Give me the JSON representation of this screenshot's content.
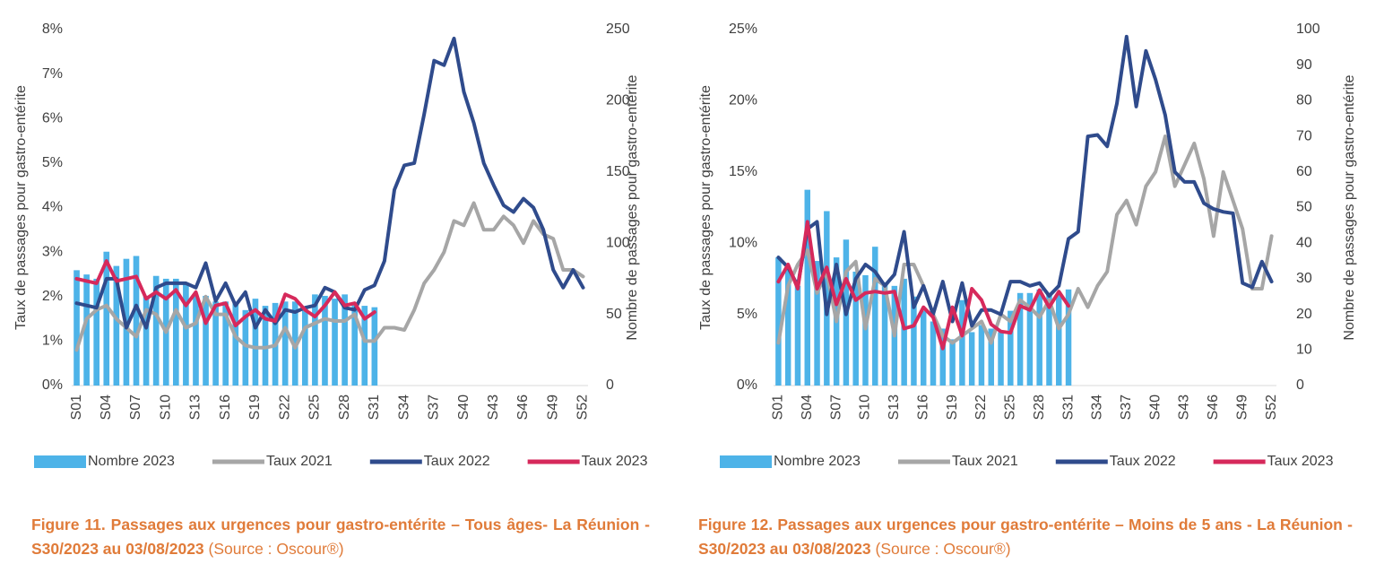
{
  "chart_data": [
    {
      "type": "bar-line",
      "caption": "Figure 11. Passages aux urgences pour gastro-entérite – Tous âges- La Réunion - S30/2023 au 03/08/2023",
      "source": "(Source : Oscour®)",
      "ylabel": "Taux de passages pour gastro-entérite",
      "y2label": "Nombre de passages pour gastro-entérite",
      "categories": [
        "S01",
        null,
        null,
        "S04",
        null,
        null,
        "S07",
        null,
        null,
        "S10",
        null,
        null,
        "S13",
        null,
        null,
        "S16",
        null,
        null,
        "S19",
        null,
        null,
        "S22",
        null,
        null,
        "S25",
        null,
        null,
        "S28",
        null,
        null,
        "S31",
        null,
        null,
        "S34",
        null,
        null,
        "S37",
        null,
        null,
        "S40",
        null,
        null,
        "S43",
        null,
        null,
        "S46",
        null,
        null,
        "S49",
        null,
        null,
        "S52"
      ],
      "ylim": [
        0,
        8
      ],
      "yticks": [
        {
          "value": 0,
          "label": "0%"
        },
        {
          "value": 1,
          "label": "1%"
        },
        {
          "value": 2,
          "label": "2%"
        },
        {
          "value": 3,
          "label": "3%"
        },
        {
          "value": 4,
          "label": "4%"
        },
        {
          "value": 5,
          "label": "5%"
        },
        {
          "value": 6,
          "label": "6%"
        },
        {
          "value": 7,
          "label": "7%"
        },
        {
          "value": 8,
          "label": "8%"
        }
      ],
      "y2lim": [
        0,
        250
      ],
      "y2ticks": [
        0,
        50,
        100,
        150,
        200,
        250
      ],
      "grid": false,
      "series": [
        {
          "name": "Nombre 2023",
          "kind": "bar",
          "axis": "y2",
          "color": "#4db3e8",
          "values": [
            81,
            78,
            75,
            94,
            84,
            89,
            91,
            63,
            77,
            75,
            75,
            72,
            63,
            63,
            59,
            59,
            58,
            53,
            61,
            56,
            58,
            59,
            59,
            55,
            64,
            63,
            61,
            64,
            58,
            56,
            55,
            null,
            null,
            null,
            null,
            null,
            null,
            null,
            null,
            null,
            null,
            null,
            null,
            null,
            null,
            null,
            null,
            null,
            null,
            null,
            null,
            null
          ]
        },
        {
          "name": "Taux 2021",
          "kind": "line",
          "color": "#a6a6a6",
          "values": [
            0.8,
            1.5,
            1.7,
            1.8,
            1.5,
            1.3,
            1.1,
            1.7,
            1.6,
            1.2,
            1.7,
            1.3,
            1.4,
            2.0,
            1.6,
            1.6,
            1.1,
            0.9,
            0.85,
            0.85,
            0.9,
            1.3,
            0.85,
            1.3,
            1.4,
            1.5,
            1.45,
            1.45,
            1.6,
            1.0,
            1.0,
            1.3,
            1.3,
            1.25,
            1.7,
            2.3,
            2.6,
            3.0,
            3.7,
            3.6,
            4.1,
            3.5,
            3.5,
            3.8,
            3.6,
            3.2,
            3.7,
            3.4,
            3.3,
            2.6,
            2.6,
            2.45
          ]
        },
        {
          "name": "Taux 2022",
          "kind": "line",
          "color": "#2f4b8c",
          "values": [
            1.85,
            1.8,
            1.75,
            2.4,
            2.4,
            1.3,
            1.8,
            1.3,
            2.2,
            2.3,
            2.3,
            2.3,
            2.2,
            2.75,
            1.9,
            2.3,
            1.8,
            2.1,
            1.3,
            1.7,
            1.4,
            1.7,
            1.65,
            1.75,
            1.8,
            2.2,
            2.1,
            1.75,
            1.7,
            2.15,
            2.25,
            2.8,
            4.4,
            4.95,
            5.0,
            6.1,
            7.3,
            7.2,
            7.8,
            6.6,
            5.9,
            5.0,
            4.5,
            4.05,
            3.9,
            4.2,
            4.0,
            3.5,
            2.6,
            2.2,
            2.6,
            2.2
          ]
        },
        {
          "name": "Taux 2023",
          "kind": "line",
          "color": "#d6295b",
          "values": [
            2.4,
            2.35,
            2.3,
            2.8,
            2.35,
            2.4,
            2.45,
            1.95,
            2.1,
            1.95,
            2.15,
            1.8,
            2.1,
            1.4,
            1.8,
            1.85,
            1.35,
            1.55,
            1.7,
            1.5,
            1.45,
            2.05,
            1.95,
            1.7,
            1.55,
            1.8,
            2.1,
            1.8,
            1.85,
            1.5,
            1.65,
            null,
            null,
            null,
            null,
            null,
            null,
            null,
            null,
            null,
            null,
            null,
            null,
            null,
            null,
            null,
            null,
            null,
            null,
            null,
            null,
            null
          ]
        }
      ]
    },
    {
      "type": "bar-line",
      "caption": "Figure 12. Passages aux urgences pour gastro-entérite  – Moins de 5 ans - La Réunion - S30/2023 au 03/08/2023",
      "source": "(Source : Oscour®)",
      "ylabel": "Taux de passages pour gastro-entérite",
      "y2label": "Nombre de passages pour gastro-entérite",
      "categories": [
        "S01",
        null,
        null,
        "S04",
        null,
        null,
        "S07",
        null,
        null,
        "S10",
        null,
        null,
        "S13",
        null,
        null,
        "S16",
        null,
        null,
        "S19",
        null,
        null,
        "S22",
        null,
        null,
        "S25",
        null,
        null,
        "S28",
        null,
        null,
        "S31",
        null,
        null,
        "S34",
        null,
        null,
        "S37",
        null,
        null,
        "S40",
        null,
        null,
        "S43",
        null,
        null,
        "S46",
        null,
        null,
        "S49",
        null,
        null,
        "S52"
      ],
      "ylim": [
        0,
        25
      ],
      "yticks": [
        {
          "value": 0,
          "label": "0%"
        },
        {
          "value": 5,
          "label": "5%"
        },
        {
          "value": 10,
          "label": "10%"
        },
        {
          "value": 15,
          "label": "15%"
        },
        {
          "value": 20,
          "label": "20%"
        },
        {
          "value": 25,
          "label": "25%"
        }
      ],
      "y2lim": [
        0,
        100
      ],
      "y2ticks": [
        0,
        10,
        20,
        30,
        40,
        50,
        60,
        70,
        80,
        90,
        100
      ],
      "grid": false,
      "series": [
        {
          "name": "Nombre 2023",
          "kind": "bar",
          "axis": "y2",
          "color": "#4db3e8",
          "values": [
            36,
            33,
            28,
            55,
            35,
            49,
            36,
            41,
            32,
            31,
            39,
            29,
            28,
            30,
            25,
            21,
            18,
            16,
            13,
            24,
            15,
            17,
            16,
            15,
            21,
            26,
            26,
            27,
            26,
            26,
            27,
            null,
            null,
            null,
            null,
            null,
            null,
            null,
            null,
            null,
            null,
            null,
            null,
            null,
            null,
            null,
            null,
            null,
            null,
            null,
            null,
            null
          ]
        },
        {
          "name": "Taux 2021",
          "kind": "line",
          "color": "#a6a6a6",
          "values": [
            3,
            7,
            8.5,
            9.5,
            6.5,
            8,
            4.5,
            8,
            8.7,
            4,
            7.5,
            7,
            3.5,
            8.5,
            8.5,
            7,
            5,
            3.5,
            3,
            3.5,
            4,
            4.5,
            3,
            5,
            4.5,
            6,
            5.5,
            4.8,
            6,
            4,
            5,
            6.8,
            5.5,
            7,
            8,
            12,
            13,
            11.3,
            14,
            15,
            17.5,
            14,
            15.5,
            17,
            14.5,
            10.5,
            15,
            13,
            11,
            6.8,
            6.8,
            10.5
          ]
        },
        {
          "name": "Taux 2022",
          "kind": "line",
          "color": "#2f4b8c",
          "values": [
            9,
            8.3,
            7,
            11,
            11.5,
            5,
            8.5,
            5,
            7.5,
            8.5,
            8,
            7,
            7.8,
            10.8,
            5.5,
            7,
            5,
            7.3,
            4.5,
            7.2,
            4.2,
            5.3,
            5.3,
            5,
            7.3,
            7.3,
            7,
            7.2,
            6.3,
            7,
            10.3,
            10.8,
            17.5,
            17.6,
            16.8,
            19.8,
            24.5,
            19.6,
            23.5,
            21.5,
            19,
            15,
            14.3,
            14.3,
            12.8,
            12.4,
            12.2,
            12.1,
            7.2,
            6.9,
            8.7,
            7.3
          ]
        },
        {
          "name": "Taux 2023",
          "kind": "line",
          "color": "#d6295b",
          "values": [
            7.3,
            8.5,
            6.8,
            11.5,
            6.8,
            8.3,
            5.7,
            7.5,
            6,
            6.5,
            6.6,
            6.5,
            6.6,
            4,
            4.2,
            5.5,
            4.8,
            2.6,
            5.5,
            3.5,
            6.8,
            6,
            4.3,
            3.8,
            3.7,
            5.6,
            5.3,
            6.7,
            5.5,
            6.6,
            5.6,
            null,
            null,
            null,
            null,
            null,
            null,
            null,
            null,
            null,
            null,
            null,
            null,
            null,
            null,
            null,
            null,
            null,
            null,
            null,
            null,
            null
          ]
        }
      ]
    }
  ]
}
